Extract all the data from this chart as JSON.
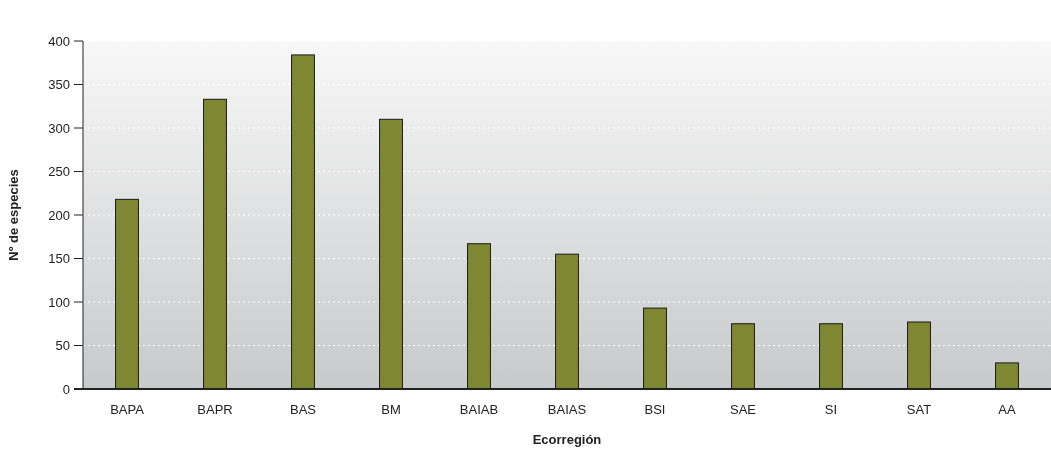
{
  "chart_data": {
    "type": "bar",
    "xlabel": "Ecorregión",
    "ylabel": "Nº de especies",
    "categories": [
      "BAPA",
      "BAPR",
      "BAS",
      "BM",
      "BAIAB",
      "BAIAS",
      "BSI",
      "SAE",
      "SI",
      "SAT",
      "AA"
    ],
    "values": [
      218,
      333,
      384,
      310,
      167,
      155,
      93,
      75,
      75,
      77,
      30
    ],
    "color": "#7f8733",
    "ylim": [
      0,
      400
    ],
    "yticks": [
      0,
      50,
      100,
      150,
      200,
      250,
      300,
      350,
      400
    ],
    "grid": "y"
  }
}
